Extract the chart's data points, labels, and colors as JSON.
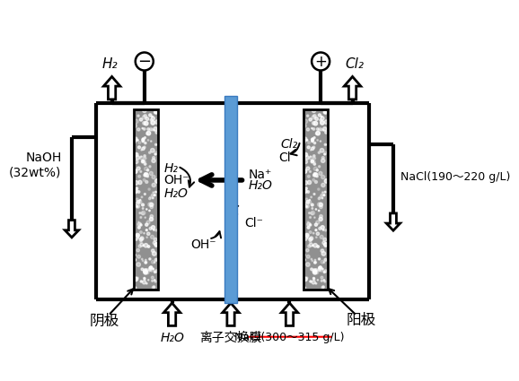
{
  "bg_color": "#ffffff",
  "membrane_color": "#5b9bd5",
  "membrane_edge": "#3a7abf",
  "labels": {
    "cathode": "阴极",
    "anode": "阳极",
    "membrane": "离子交换膜",
    "h2_top": "H₂",
    "cl2_top": "Cl₂",
    "naoh": "NaOH\n(32wt%)",
    "nacl_top_right": "NaCl(190～220 g/L)",
    "nacl_bot": "NaCl(300～315 g/L)",
    "h2o_bot": "H₂O",
    "h2_inner": "H₂",
    "oh_inner": "OH⁻",
    "h2o_inner": "H₂O",
    "na_plus": "Na⁺",
    "h2o_center": "H₂O",
    "cl2_inner": "Cl₂",
    "cl_inner": "Cl⁻",
    "cl_lower": "Cl⁻",
    "oh_lower": "OH⁻",
    "minus_sym": "−",
    "plus_sym": "+"
  }
}
